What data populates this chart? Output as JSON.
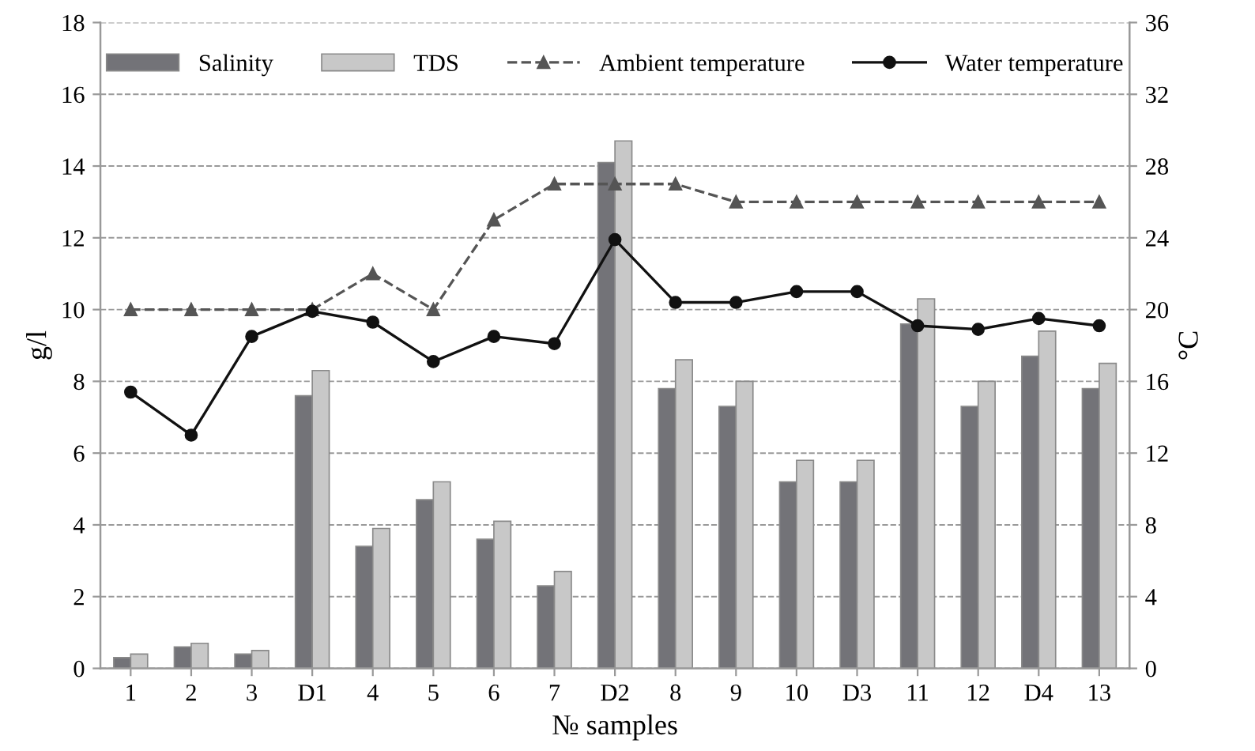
{
  "chart_data": {
    "type": "bar",
    "xlabel": "№ samples",
    "ylabel": "g/l",
    "y2label": "°C",
    "categories": [
      "1",
      "2",
      "3",
      "D1",
      "4",
      "5",
      "6",
      "7",
      "D2",
      "8",
      "9",
      "10",
      "D3",
      "11",
      "12",
      "D4",
      "13"
    ],
    "series": [
      {
        "name": "Salinity",
        "color": "#737378",
        "values": [
          0.3,
          0.6,
          0.4,
          7.6,
          3.4,
          4.7,
          3.6,
          2.3,
          14.1,
          7.8,
          7.3,
          5.2,
          5.2,
          9.6,
          7.3,
          8.7,
          7.8
        ]
      },
      {
        "name": "TDS",
        "color": "#c8c8c8",
        "values": [
          0.4,
          0.7,
          0.5,
          8.3,
          3.9,
          5.2,
          4.1,
          2.7,
          14.7,
          8.6,
          8.0,
          5.8,
          5.8,
          10.3,
          8.0,
          9.4,
          8.5
        ]
      },
      {
        "name": "Ambient temperature",
        "type": "line",
        "axis": "y2",
        "color": "#555555",
        "marker": "triangle",
        "line_style": "dashed",
        "values": [
          20,
          20,
          20,
          20,
          22,
          20,
          25,
          27,
          27,
          27,
          26,
          26,
          26,
          26,
          26,
          26,
          26
        ]
      },
      {
        "name": "Water temperature",
        "type": "line",
        "axis": "y2",
        "color": "#111111",
        "marker": "circle",
        "line_style": "solid",
        "values": [
          15.4,
          13.0,
          18.5,
          19.9,
          19.3,
          17.1,
          18.5,
          18.1,
          23.9,
          20.4,
          20.4,
          21.0,
          21.0,
          19.1,
          18.9,
          19.5,
          19.1
        ]
      }
    ],
    "ylim": [
      0,
      18
    ],
    "yticks": [
      0,
      2,
      4,
      6,
      8,
      10,
      12,
      14,
      16,
      18
    ],
    "y2lim": [
      0,
      36
    ],
    "y2ticks": [
      0,
      4,
      8,
      12,
      16,
      20,
      24,
      28,
      32,
      36
    ],
    "grid": "y",
    "legend": "top"
  }
}
